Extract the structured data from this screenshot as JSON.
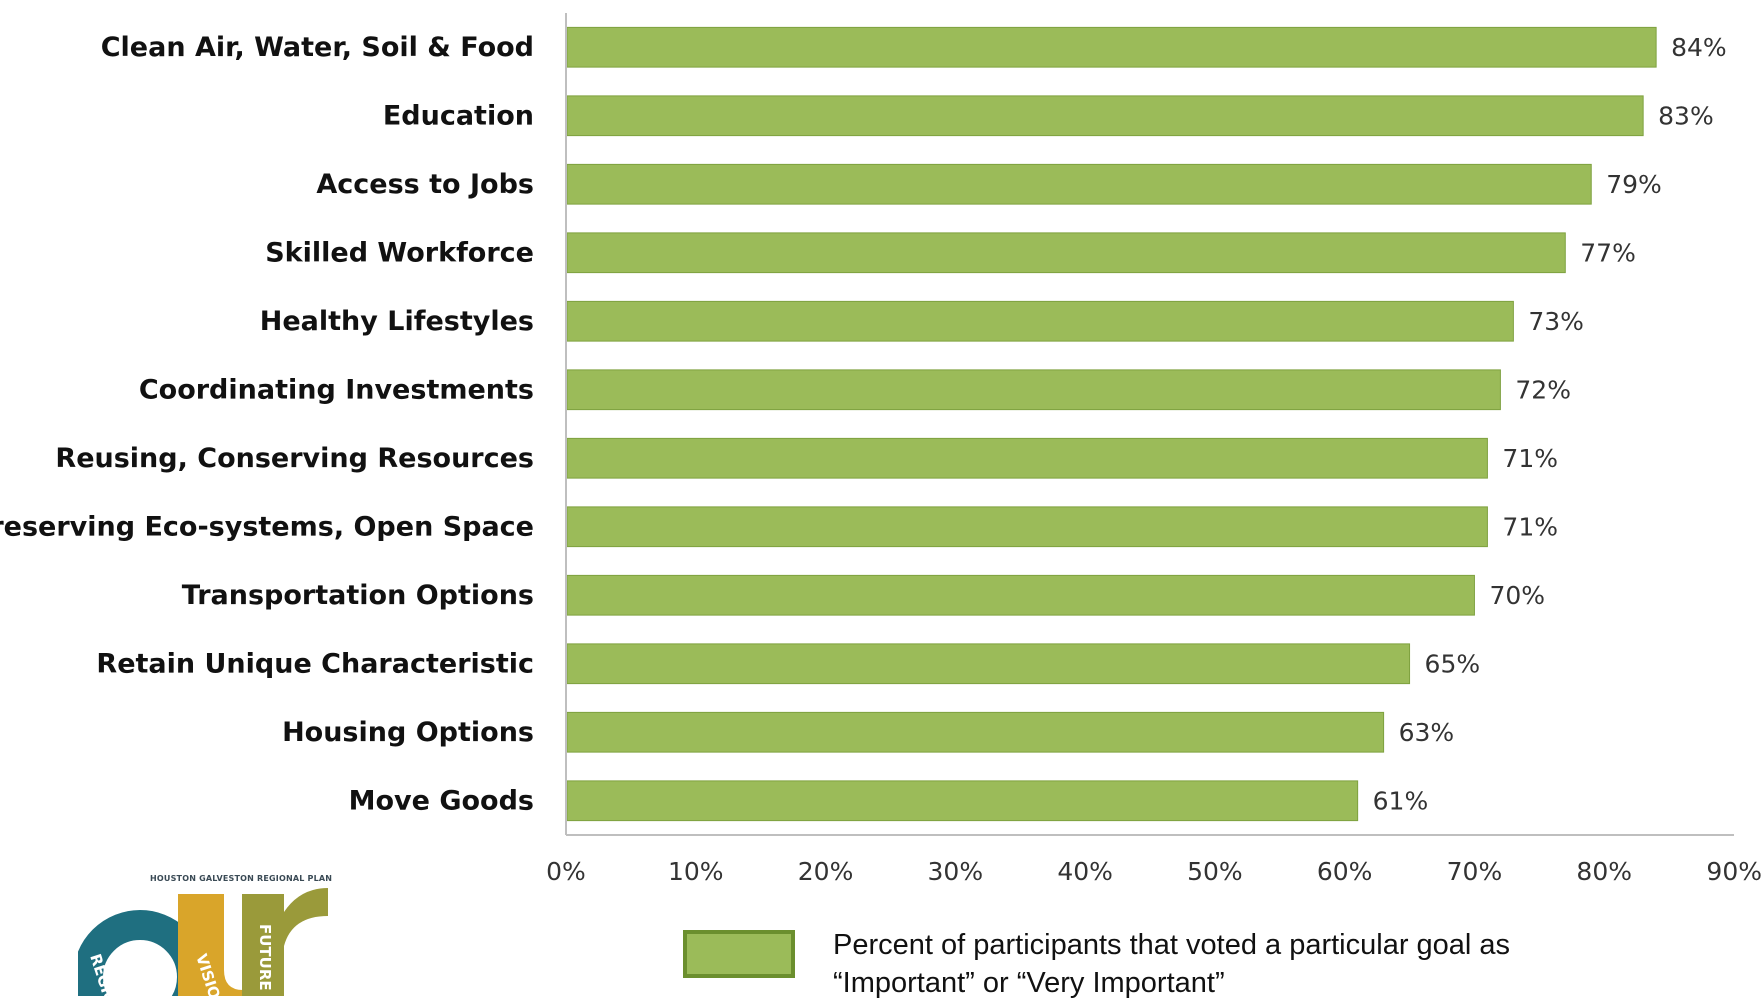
{
  "chart_data": {
    "type": "bar",
    "orientation": "horizontal",
    "categories": [
      "Clean Air, Water, Soil & Food",
      "Education",
      "Access to Jobs",
      "Skilled Workforce",
      "Healthy Lifestyles",
      "Coordinating Investments",
      "Reusing, Conserving Resources",
      "Preserving Eco-systems, Open Space",
      "Transportation Options",
      "Retain Unique Characteristic",
      "Housing Options",
      "Move Goods"
    ],
    "values": [
      84,
      83,
      79,
      77,
      73,
      72,
      71,
      71,
      70,
      65,
      63,
      61
    ],
    "value_labels": [
      "84%",
      "83%",
      "79%",
      "77%",
      "73%",
      "72%",
      "71%",
      "71%",
      "70%",
      "65%",
      "63%",
      "61%"
    ],
    "xlim": [
      0,
      90
    ],
    "xticks": [
      0,
      10,
      20,
      30,
      40,
      50,
      60,
      70,
      80,
      90
    ],
    "xtick_labels": [
      "0%",
      "10%",
      "20%",
      "30%",
      "40%",
      "50%",
      "60%",
      "70%",
      "80%",
      "90%"
    ],
    "title": "",
    "xlabel": "",
    "ylabel": "",
    "grid": false,
    "legend_placement": "bottom",
    "series": [
      {
        "name": "Percent of participants that voted a particular goal as “Important” or “Very Important”",
        "color": "#9bbb59"
      }
    ]
  },
  "legend": {
    "line1": "Percent of participants that voted a particular goal as",
    "line2": "“Important” or “Very Important”"
  },
  "logo": {
    "header": "HOUSTON GALVESTON REGIONAL PLAN",
    "word_region": "REGION",
    "word_vision": "VISION",
    "word_future": "FUTURE"
  },
  "colors": {
    "bar": "#9bbb59",
    "bar_edge": "#7ea13f",
    "axis": "#bfbfbf",
    "logo_teal": "#1f6f80",
    "logo_gold": "#d9a52a",
    "logo_olive": "#9a9a3a"
  }
}
